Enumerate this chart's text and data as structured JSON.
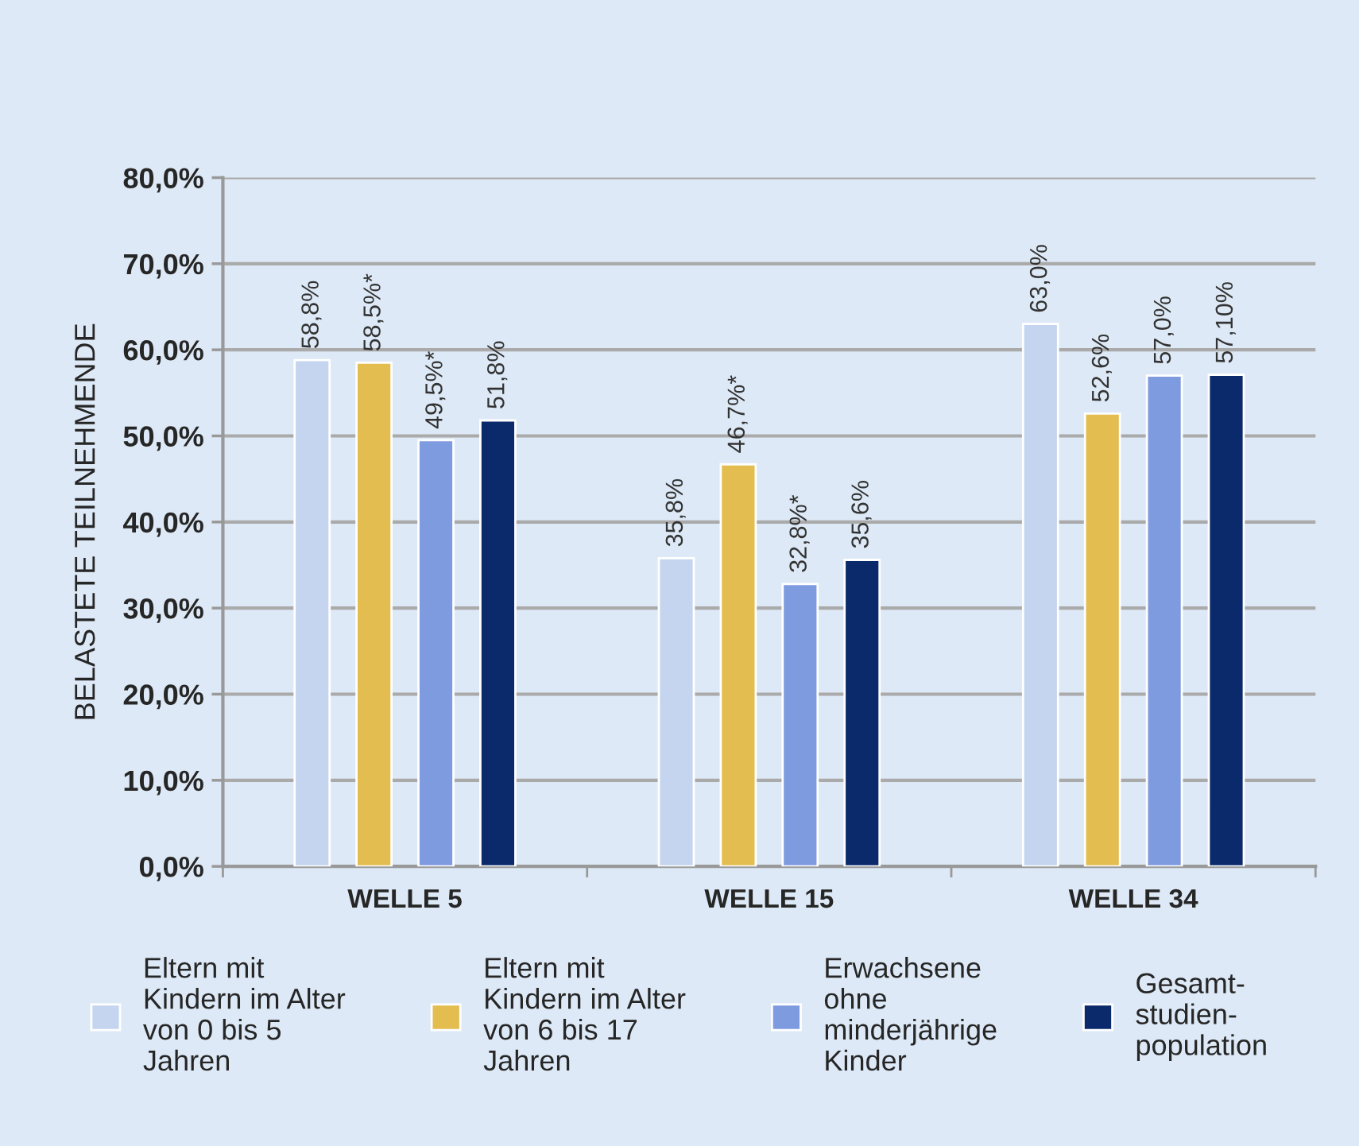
{
  "chart_data": {
    "type": "bar",
    "ylabel": "BELASTETE TEILNEHMENDE",
    "categories": [
      "WELLE 5",
      "WELLE 15",
      "WELLE 34"
    ],
    "series": [
      {
        "name": "Eltern mit\nKindern im Alter\nvon 0 bis 5\nJahren",
        "color": "#c5d5f0",
        "values": [
          58.8,
          35.8,
          63.0
        ],
        "value_labels": [
          "58,8%",
          "35,8%",
          "63,0%"
        ]
      },
      {
        "name": "Eltern mit\nKindern im Alter\nvon 6 bis 17\nJahren",
        "color": "#e3bd4f",
        "values": [
          58.5,
          46.7,
          52.6
        ],
        "value_labels": [
          "58,5%*",
          "46,7%*",
          "52,6%"
        ]
      },
      {
        "name": "Erwachsene\nohne\nminderjährige\nKinder",
        "color": "#7f9be0",
        "values": [
          49.5,
          32.8,
          57.0
        ],
        "value_labels": [
          "49,5%*",
          "32,8%*",
          "57,0%"
        ]
      },
      {
        "name": "Gesamt-\nstudien-\npopulation",
        "color": "#0b2a6b",
        "values": [
          51.8,
          35.6,
          57.1
        ],
        "value_labels": [
          "51,8%",
          "35,6%",
          "57,10%"
        ]
      }
    ],
    "ylim": [
      0,
      80
    ],
    "yticks": [
      {
        "value": 0,
        "label": "0,0%"
      },
      {
        "value": 10,
        "label": "10,0%"
      },
      {
        "value": 20,
        "label": "20,0%"
      },
      {
        "value": 30,
        "label": "30,0%"
      },
      {
        "value": 40,
        "label": "40,0%"
      },
      {
        "value": 50,
        "label": "50,0%"
      },
      {
        "value": 60,
        "label": "60,0%"
      },
      {
        "value": 70,
        "label": "70,0%"
      },
      {
        "value": 80,
        "label": "80,0%"
      }
    ],
    "grid": "y",
    "legend": "bottom"
  }
}
